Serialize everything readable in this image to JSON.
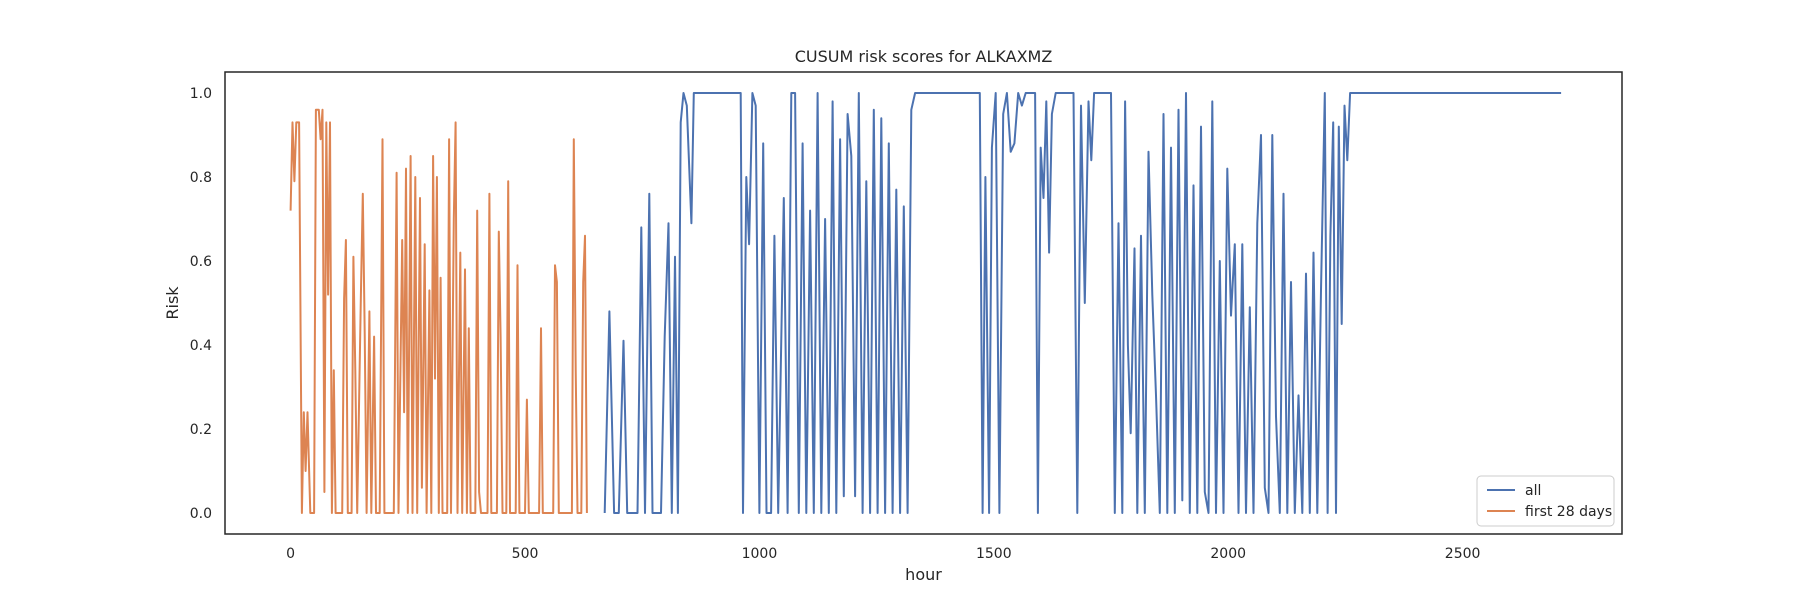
{
  "chart_data": {
    "type": "line",
    "title": "CUSUM risk scores for ALKAXMZ",
    "xlabel": "hour",
    "ylabel": "Risk",
    "xlim": [
      -140,
      2840
    ],
    "ylim": [
      -0.05,
      1.05
    ],
    "xticks": [
      0,
      500,
      1000,
      1500,
      2000,
      2500
    ],
    "yticks": [
      0.0,
      0.2,
      0.4,
      0.6,
      0.8,
      1.0
    ],
    "xtick_labels": [
      "0",
      "500",
      "1000",
      "1500",
      "2000",
      "2500"
    ],
    "ytick_labels": [
      "0.0",
      "0.2",
      "0.4",
      "0.6",
      "0.8",
      "1.0"
    ],
    "grid": false,
    "legend_position": "lower-right",
    "series": [
      {
        "name": "all",
        "color": "#4c72b0",
        "points": [
          [
            670,
            0
          ],
          [
            680,
            0.48
          ],
          [
            690,
            0
          ],
          [
            700,
            0
          ],
          [
            710,
            0.41
          ],
          [
            718,
            0
          ],
          [
            740,
            0
          ],
          [
            748,
            0.68
          ],
          [
            756,
            0
          ],
          [
            765,
            0.76
          ],
          [
            772,
            0
          ],
          [
            790,
            0
          ],
          [
            798,
            0.42
          ],
          [
            806,
            0.69
          ],
          [
            813,
            0
          ],
          [
            820,
            0.61
          ],
          [
            826,
            0
          ],
          [
            832,
            0.93
          ],
          [
            838,
            1.0
          ],
          [
            845,
            0.97
          ],
          [
            855,
            0.69
          ],
          [
            860,
            1.0
          ],
          [
            960,
            1.0
          ],
          [
            965,
            0
          ],
          [
            972,
            0.8
          ],
          [
            978,
            0.64
          ],
          [
            985,
            1.0
          ],
          [
            992,
            0.97
          ],
          [
            1000,
            0
          ],
          [
            1008,
            0.88
          ],
          [
            1015,
            0
          ],
          [
            1025,
            0
          ],
          [
            1032,
            0.66
          ],
          [
            1040,
            0
          ],
          [
            1052,
            0.75
          ],
          [
            1060,
            0
          ],
          [
            1068,
            1.0
          ],
          [
            1076,
            1.0
          ],
          [
            1084,
            0
          ],
          [
            1092,
            0.88
          ],
          [
            1100,
            0
          ],
          [
            1108,
            0.72
          ],
          [
            1116,
            0
          ],
          [
            1124,
            1.0
          ],
          [
            1132,
            0
          ],
          [
            1140,
            0.7
          ],
          [
            1148,
            0
          ],
          [
            1156,
            0.98
          ],
          [
            1164,
            0
          ],
          [
            1172,
            0.89
          ],
          [
            1180,
            0.04
          ],
          [
            1188,
            0.95
          ],
          [
            1196,
            0.85
          ],
          [
            1204,
            0.04
          ],
          [
            1212,
            1.0
          ],
          [
            1220,
            0
          ],
          [
            1228,
            0.79
          ],
          [
            1236,
            0
          ],
          [
            1244,
            0.96
          ],
          [
            1252,
            0
          ],
          [
            1260,
            0.94
          ],
          [
            1268,
            0
          ],
          [
            1276,
            0.88
          ],
          [
            1284,
            0
          ],
          [
            1292,
            0.77
          ],
          [
            1300,
            0
          ],
          [
            1308,
            0.73
          ],
          [
            1316,
            0
          ],
          [
            1324,
            0.96
          ],
          [
            1332,
            1.0
          ],
          [
            1470,
            1.0
          ],
          [
            1476,
            0
          ],
          [
            1482,
            0.8
          ],
          [
            1490,
            0
          ],
          [
            1496,
            0.87
          ],
          [
            1504,
            1.0
          ],
          [
            1512,
            0
          ],
          [
            1520,
            0.95
          ],
          [
            1528,
            1.0
          ],
          [
            1536,
            0.86
          ],
          [
            1544,
            0.88
          ],
          [
            1552,
            1.0
          ],
          [
            1560,
            0.97
          ],
          [
            1568,
            1.0
          ],
          [
            1588,
            1.0
          ],
          [
            1594,
            0
          ],
          [
            1600,
            0.87
          ],
          [
            1606,
            0.75
          ],
          [
            1612,
            0.98
          ],
          [
            1618,
            0.62
          ],
          [
            1624,
            0.95
          ],
          [
            1632,
            1.0
          ],
          [
            1670,
            1.0
          ],
          [
            1678,
            0
          ],
          [
            1686,
            0.97
          ],
          [
            1694,
            0.5
          ],
          [
            1702,
            0.98
          ],
          [
            1708,
            0.84
          ],
          [
            1714,
            1.0
          ],
          [
            1750,
            1.0
          ],
          [
            1758,
            0
          ],
          [
            1766,
            0.69
          ],
          [
            1774,
            0
          ],
          [
            1780,
            0.98
          ],
          [
            1786,
            0.4
          ],
          [
            1792,
            0.19
          ],
          [
            1800,
            0.63
          ],
          [
            1806,
            0
          ],
          [
            1814,
            0.66
          ],
          [
            1822,
            0
          ],
          [
            1830,
            0.86
          ],
          [
            1838,
            0.52
          ],
          [
            1846,
            0.28
          ],
          [
            1854,
            0
          ],
          [
            1862,
            0.95
          ],
          [
            1870,
            0
          ],
          [
            1878,
            0.87
          ],
          [
            1886,
            0
          ],
          [
            1894,
            0.96
          ],
          [
            1902,
            0.03
          ],
          [
            1910,
            1.0
          ],
          [
            1918,
            0
          ],
          [
            1926,
            0.78
          ],
          [
            1934,
            0
          ],
          [
            1942,
            0.92
          ],
          [
            1950,
            0.05
          ],
          [
            1958,
            0
          ],
          [
            1966,
            0.98
          ],
          [
            1974,
            0
          ],
          [
            1982,
            0.6
          ],
          [
            1990,
            0
          ],
          [
            1998,
            0.82
          ],
          [
            2006,
            0.47
          ],
          [
            2014,
            0.64
          ],
          [
            2022,
            0
          ],
          [
            2030,
            0.64
          ],
          [
            2038,
            0
          ],
          [
            2046,
            0.49
          ],
          [
            2054,
            0
          ],
          [
            2062,
            0.69
          ],
          [
            2070,
            0.9
          ],
          [
            2078,
            0.06
          ],
          [
            2086,
            0
          ],
          [
            2094,
            0.9
          ],
          [
            2102,
            0.23
          ],
          [
            2110,
            0
          ],
          [
            2118,
            0.76
          ],
          [
            2126,
            0
          ],
          [
            2134,
            0.55
          ],
          [
            2142,
            0
          ],
          [
            2150,
            0.28
          ],
          [
            2158,
            0
          ],
          [
            2166,
            0.57
          ],
          [
            2174,
            0
          ],
          [
            2182,
            0.62
          ],
          [
            2190,
            0
          ],
          [
            2198,
            0.53
          ],
          [
            2206,
            1.0
          ],
          [
            2212,
            0
          ],
          [
            2218,
            0.66
          ],
          [
            2224,
            0.93
          ],
          [
            2230,
            0
          ],
          [
            2236,
            0.92
          ],
          [
            2242,
            0.45
          ],
          [
            2248,
            0.97
          ],
          [
            2254,
            0.84
          ],
          [
            2260,
            1.0
          ],
          [
            2710,
            1.0
          ]
        ]
      },
      {
        "name": "first 28 days",
        "color": "#dd8452",
        "points": [
          [
            0,
            0.72
          ],
          [
            4,
            0.93
          ],
          [
            8,
            0.79
          ],
          [
            12,
            0.93
          ],
          [
            18,
            0.93
          ],
          [
            24,
            0
          ],
          [
            28,
            0.24
          ],
          [
            32,
            0.1
          ],
          [
            36,
            0.24
          ],
          [
            42,
            0
          ],
          [
            50,
            0
          ],
          [
            54,
            0.96
          ],
          [
            60,
            0.96
          ],
          [
            64,
            0.89
          ],
          [
            68,
            0.96
          ],
          [
            72,
            0.05
          ],
          [
            76,
            0.93
          ],
          [
            80,
            0.52
          ],
          [
            84,
            0.93
          ],
          [
            88,
            0
          ],
          [
            92,
            0.34
          ],
          [
            96,
            0
          ],
          [
            110,
            0
          ],
          [
            114,
            0.51
          ],
          [
            118,
            0.65
          ],
          [
            122,
            0
          ],
          [
            130,
            0
          ],
          [
            134,
            0.61
          ],
          [
            138,
            0.34
          ],
          [
            142,
            0
          ],
          [
            150,
            0.52
          ],
          [
            154,
            0.76
          ],
          [
            158,
            0.43
          ],
          [
            162,
            0
          ],
          [
            168,
            0.48
          ],
          [
            172,
            0
          ],
          [
            178,
            0.42
          ],
          [
            182,
            0
          ],
          [
            190,
            0
          ],
          [
            196,
            0.89
          ],
          [
            200,
            0
          ],
          [
            220,
            0
          ],
          [
            226,
            0.81
          ],
          [
            230,
            0
          ],
          [
            238,
            0.65
          ],
          [
            242,
            0.24
          ],
          [
            246,
            0.82
          ],
          [
            250,
            0
          ],
          [
            256,
            0.85
          ],
          [
            260,
            0
          ],
          [
            266,
            0.8
          ],
          [
            270,
            0
          ],
          [
            276,
            0.75
          ],
          [
            280,
            0.06
          ],
          [
            286,
            0.64
          ],
          [
            290,
            0
          ],
          [
            296,
            0.53
          ],
          [
            300,
            0
          ],
          [
            304,
            0.85
          ],
          [
            308,
            0.32
          ],
          [
            312,
            0.8
          ],
          [
            316,
            0
          ],
          [
            320,
            0.56
          ],
          [
            324,
            0
          ],
          [
            334,
            0
          ],
          [
            338,
            0.89
          ],
          [
            342,
            0
          ],
          [
            348,
            0.7
          ],
          [
            352,
            0.93
          ],
          [
            356,
            0
          ],
          [
            362,
            0.62
          ],
          [
            366,
            0
          ],
          [
            372,
            0.58
          ],
          [
            376,
            0
          ],
          [
            380,
            0.44
          ],
          [
            384,
            0
          ],
          [
            394,
            0
          ],
          [
            398,
            0.72
          ],
          [
            402,
            0.05
          ],
          [
            406,
            0
          ],
          [
            420,
            0
          ],
          [
            424,
            0.76
          ],
          [
            428,
            0
          ],
          [
            440,
            0
          ],
          [
            444,
            0.67
          ],
          [
            448,
            0.42
          ],
          [
            452,
            0
          ],
          [
            460,
            0
          ],
          [
            464,
            0.79
          ],
          [
            468,
            0
          ],
          [
            480,
            0
          ],
          [
            484,
            0.59
          ],
          [
            488,
            0
          ],
          [
            500,
            0
          ],
          [
            504,
            0.27
          ],
          [
            508,
            0
          ],
          [
            530,
            0
          ],
          [
            534,
            0.44
          ],
          [
            538,
            0
          ],
          [
            560,
            0
          ],
          [
            564,
            0.59
          ],
          [
            568,
            0.55
          ],
          [
            572,
            0
          ],
          [
            600,
            0
          ],
          [
            604,
            0.89
          ],
          [
            608,
            0.34
          ],
          [
            612,
            0
          ],
          [
            620,
            0
          ],
          [
            624,
            0.55
          ],
          [
            628,
            0.66
          ],
          [
            632,
            0
          ]
        ]
      }
    ]
  }
}
